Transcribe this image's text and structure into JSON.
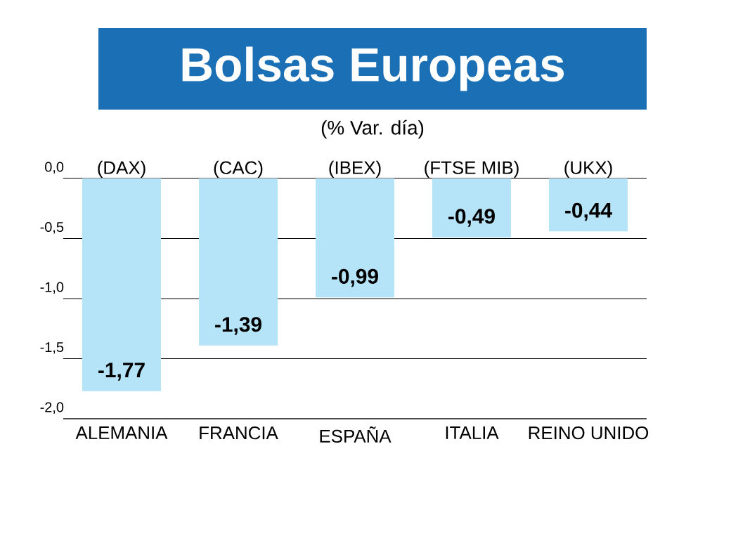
{
  "chart_data": {
    "type": "bar",
    "title": "Bolsas Europeas",
    "subtitle": "(% Var. día)",
    "categories": [
      "ALEMANIA",
      "FRANCIA",
      "ESPAÑA",
      "ITALIA",
      "REINO UNIDO"
    ],
    "values": [
      -1.77,
      -1.39,
      -0.99,
      -0.49,
      -0.44
    ],
    "value_labels": [
      "-1,77",
      "-1,39",
      "-0,99",
      "-0,49",
      "-0,44"
    ],
    "color": "#b5e3f7",
    "ylim": [
      -2,
      0
    ],
    "yticks": [
      {
        "value": 0,
        "label": "0,0"
      },
      {
        "value": -0.5,
        "label": "-0,5"
      },
      {
        "value": -1,
        "label": "-1,0"
      },
      {
        "value": -1.5,
        "label": "-1,5"
      },
      {
        "value": -2,
        "label": "-2,0"
      }
    ],
    "grid": "y",
    "annotations": [
      "(DAX)",
      "(CAC)",
      "(IBEX)",
      "(FTSE MIB)",
      "(UKX)"
    ]
  }
}
